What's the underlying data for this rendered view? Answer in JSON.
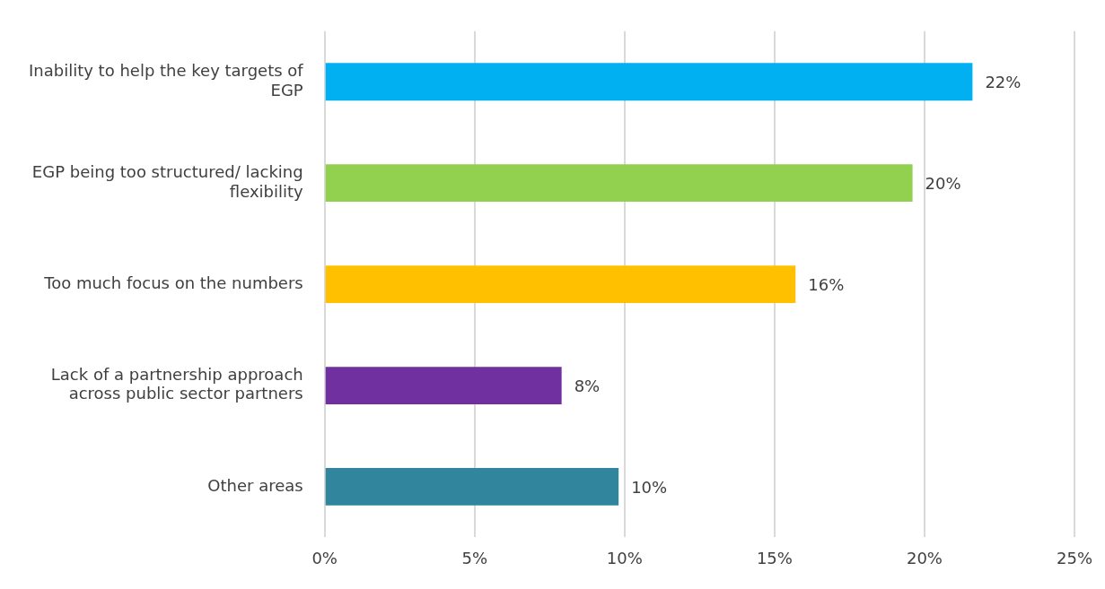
{
  "chart_data": {
    "type": "bar",
    "orientation": "horizontal",
    "categories": [
      "Inability to help the key targets of EGP",
      "EGP being too structured/ lacking flexibility",
      "Too much focus on the numbers",
      "Lack of a partnership approach across public sector partners",
      "Other areas"
    ],
    "values": [
      21.6,
      19.6,
      15.7,
      7.9,
      9.8
    ],
    "value_labels": [
      "22%",
      "20%",
      "16%",
      "8%",
      "10%"
    ],
    "colors": [
      "#00b0f0",
      "#92d050",
      "#ffc000",
      "#7030a0",
      "#31859c"
    ],
    "xlim": [
      0,
      25
    ],
    "xticks": [
      {
        "value": 0,
        "label": "0%"
      },
      {
        "value": 5,
        "label": "5%"
      },
      {
        "value": 10,
        "label": "10%"
      },
      {
        "value": 15,
        "label": "15%"
      },
      {
        "value": 20,
        "label": "20%"
      },
      {
        "value": 25,
        "label": "25%"
      }
    ],
    "grid": "x",
    "legend": false
  }
}
